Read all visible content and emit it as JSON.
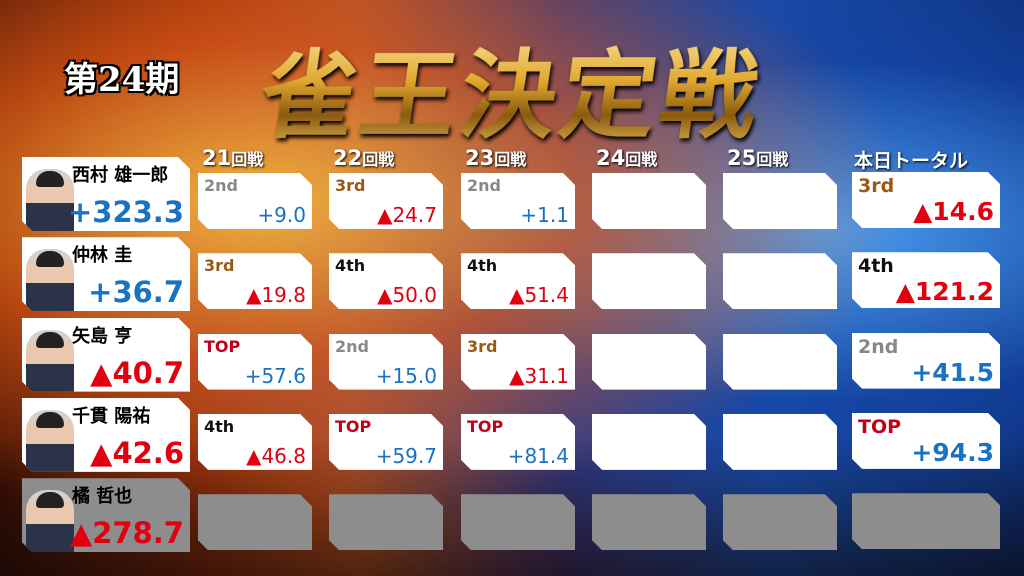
{
  "header": {
    "period": "第24期",
    "title": "雀王決定戦"
  },
  "colors": {
    "positive": "#1a73c0",
    "negative": "#e00010",
    "top": "#c00018",
    "second": "#888888",
    "third": "#9a5a14",
    "fourth": "#111111",
    "eliminated": "#8d8d8d"
  },
  "columns": [
    {
      "num": "21",
      "unit": "回戦"
    },
    {
      "num": "22",
      "unit": "回戦"
    },
    {
      "num": "23",
      "unit": "回戦"
    },
    {
      "num": "24",
      "unit": "回戦"
    },
    {
      "num": "25",
      "unit": "回戦"
    },
    {
      "num": "",
      "unit": "本日トータル"
    }
  ],
  "players": [
    {
      "name": "西村 雄一郎",
      "total": "+323.3",
      "sign": "pos",
      "games": [
        {
          "rank": "2nd",
          "score": "+9.0"
        },
        {
          "rank": "3rd",
          "score": "▲24.7"
        },
        {
          "rank": "2nd",
          "score": "+1.1"
        },
        null,
        null
      ],
      "day": {
        "rank": "3rd",
        "score": "▲14.6"
      }
    },
    {
      "name": "仲林 圭",
      "total": "+36.7",
      "sign": "pos",
      "games": [
        {
          "rank": "3rd",
          "score": "▲19.8"
        },
        {
          "rank": "4th",
          "score": "▲50.0"
        },
        {
          "rank": "4th",
          "score": "▲51.4"
        },
        null,
        null
      ],
      "day": {
        "rank": "4th",
        "score": "▲121.2"
      }
    },
    {
      "name": "矢島 亨",
      "total": "▲40.7",
      "sign": "neg",
      "games": [
        {
          "rank": "TOP",
          "score": "+57.6"
        },
        {
          "rank": "2nd",
          "score": "+15.0"
        },
        {
          "rank": "3rd",
          "score": "▲31.1"
        },
        null,
        null
      ],
      "day": {
        "rank": "2nd",
        "score": "+41.5"
      }
    },
    {
      "name": "千貫 陽祐",
      "total": "▲42.6",
      "sign": "neg",
      "games": [
        {
          "rank": "4th",
          "score": "▲46.8"
        },
        {
          "rank": "TOP",
          "score": "+59.7"
        },
        {
          "rank": "TOP",
          "score": "+81.4"
        },
        null,
        null
      ],
      "day": {
        "rank": "TOP",
        "score": "+94.3"
      }
    },
    {
      "name": "橘 哲也",
      "total": "▲278.7",
      "sign": "neg",
      "eliminated": true,
      "games": [
        null,
        null,
        null,
        null,
        null
      ],
      "day": null
    }
  ]
}
